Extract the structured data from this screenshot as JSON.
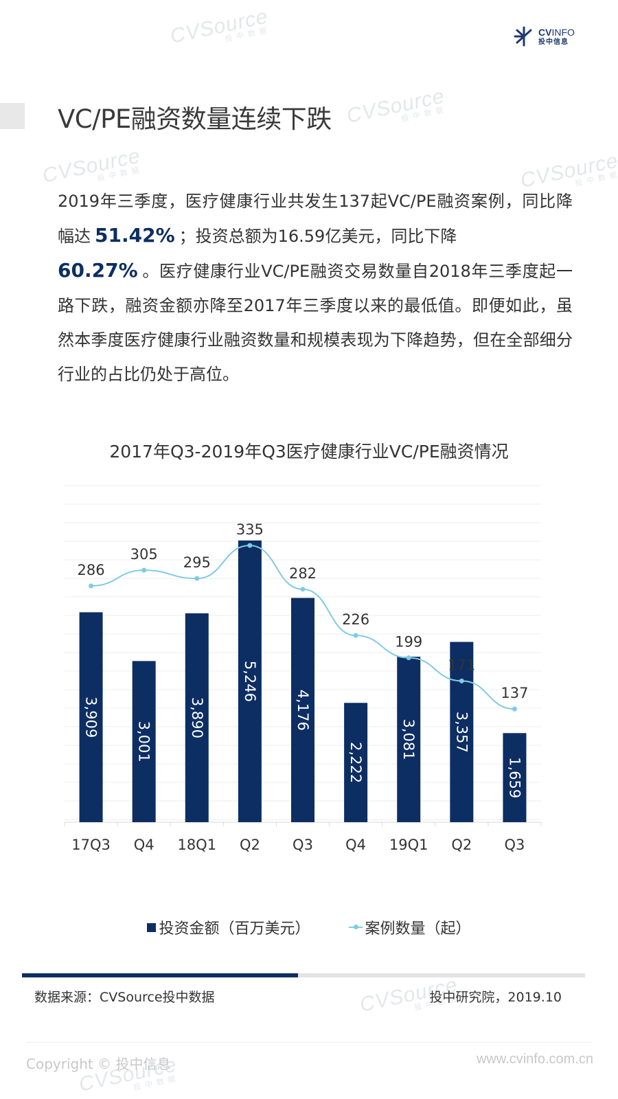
{
  "brand": {
    "logo_en": "CV",
    "logo_en_light": "INFO",
    "logo_cn": "投中信息",
    "watermark": "CVSource",
    "watermark_cn": "投中数据",
    "colors": {
      "navy": "#0d2e62",
      "line": "#7fcbe3"
    }
  },
  "page": {
    "title": "VC/PE融资数量连续下跌",
    "para": {
      "p1": "2019年三季度，医疗健康行业共发生137起VC/PE融资案例，同比降幅达",
      "hl1": "51.42%",
      "p2": "；投资总额为16.59亿美元，同比下降",
      "hl2": "60.27%",
      "p3": "。医疗健康行业VC/PE融资交易数量自2018年三季度起一路下跌，融资金额亦降至2017年三季度以来的最低值。即便如此，虽然本季度医疗健康行业融资数量和规模表现为下降趋势，但在全部细分行业的占比仍处于高位。"
    }
  },
  "chart_data": {
    "type": "bar",
    "title": "2017年Q3-2019年Q3医疗健康行业VC/PE融资情况",
    "categories": [
      "17Q3",
      "Q4",
      "18Q1",
      "Q2",
      "Q3",
      "Q4",
      "19Q1",
      "Q2",
      "Q3"
    ],
    "series": [
      {
        "name": "投资金额（百万美元）",
        "kind": "bar",
        "values": [
          3909,
          3001,
          3890,
          5246,
          4176,
          2222,
          3081,
          3357,
          1659
        ],
        "labels": [
          "3,909",
          "3,001",
          "3,890",
          "5,246",
          "4,176",
          "2,222",
          "3,081",
          "3,357",
          "1,659"
        ]
      },
      {
        "name": "案例数量（起）",
        "kind": "line",
        "values": [
          286,
          305,
          295,
          335,
          282,
          226,
          199,
          171,
          137
        ]
      }
    ],
    "xlabel": "",
    "ylabel": "",
    "ylim_bar": [
      0,
      5500
    ],
    "ylim_line": [
      0,
      360
    ],
    "grid": true,
    "legend_position": "bottom",
    "legend": [
      "投资金额（百万美元）",
      "案例数量（起）"
    ]
  },
  "footer": {
    "source": "数据来源：CVSource投中数据",
    "credit": "投中研究院，2019.10",
    "copyright": "Copyright © 投中信息",
    "website": "www.cvinfo.com.cn",
    "progress_fraction": 0.49
  }
}
